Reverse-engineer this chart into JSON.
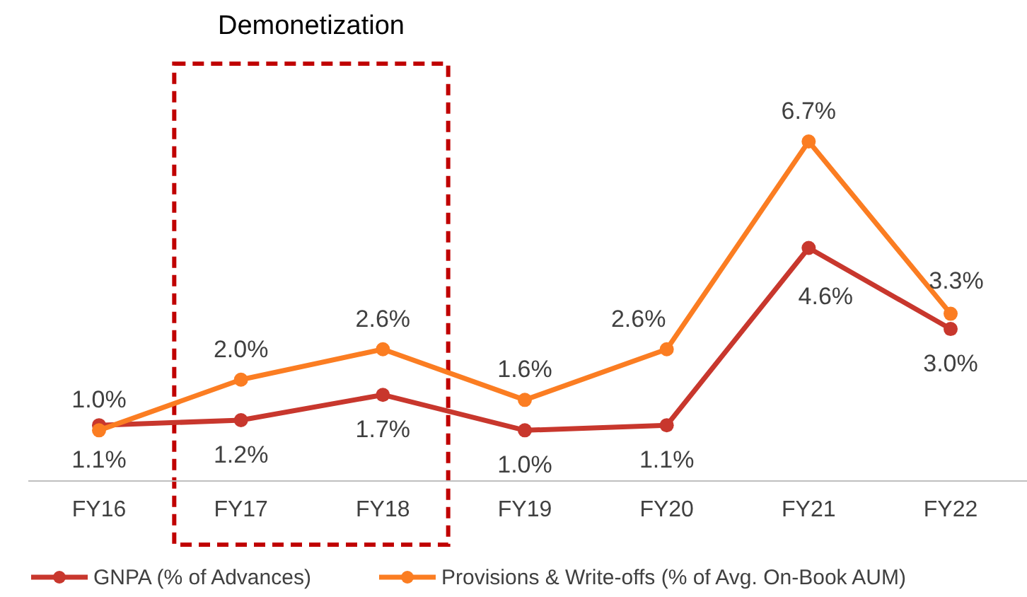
{
  "chart_data": {
    "type": "line",
    "categories": [
      "FY16",
      "FY17",
      "FY18",
      "FY19",
      "FY20",
      "FY21",
      "FY22"
    ],
    "series": [
      {
        "name": "GNPA (% of Advances)",
        "color": "#c8372d",
        "values": [
          1.1,
          1.2,
          1.7,
          1.0,
          1.1,
          4.6,
          3.0
        ],
        "value_labels": [
          "1.1%",
          "1.2%",
          "1.7%",
          "1.0%",
          "1.1%",
          "4.6%",
          "3.0%"
        ]
      },
      {
        "name": "Provisions & Write-offs (% of Avg. On-Book AUM)",
        "color": "#fb7d22",
        "values": [
          1.0,
          2.0,
          2.6,
          1.6,
          2.6,
          6.7,
          3.3
        ],
        "value_labels": [
          "1.0%",
          "2.0%",
          "2.6%",
          "1.6%",
          "2.6%",
          "6.7%",
          "3.3%"
        ]
      }
    ],
    "tick_labels": "x",
    "grid": false,
    "legend": "bottom",
    "marker": "circle",
    "line_style": "solid",
    "annotations": [
      "Demonetization"
    ]
  }
}
